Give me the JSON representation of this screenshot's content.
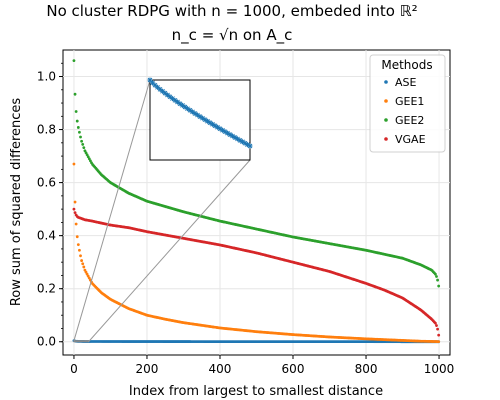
{
  "chart_data": {
    "type": "scatter",
    "title_line1": "No cluster RDPG with n = 1000, embeded into ℝ²",
    "title_line2": "n_c = √n on A_c",
    "xlabel": "Index from largest to smallest distance",
    "ylabel": "Row sum of squared differences",
    "xlim": [
      -30,
      1030
    ],
    "ylim": [
      -0.05,
      1.1
    ],
    "xticks": [
      0,
      200,
      400,
      600,
      800,
      1000
    ],
    "yticks": [
      0.0,
      0.2,
      0.4,
      0.6,
      0.8,
      1.0
    ],
    "xtick_labels": [
      "0",
      "200",
      "400",
      "600",
      "800",
      "1000"
    ],
    "ytick_labels": [
      "0.0",
      "0.2",
      "0.4",
      "0.6",
      "0.8",
      "1.0"
    ],
    "grid": true,
    "legend_title": "Methods",
    "legend_position": "top-right",
    "series": [
      {
        "name": "ASE",
        "color": "#1f77b4",
        "x": [
          0,
          5,
          10,
          20,
          30,
          50,
          100,
          200,
          300,
          400,
          500,
          600,
          700,
          800,
          900,
          950,
          990,
          999
        ],
        "y": [
          0.004,
          0.002,
          0.0015,
          0.0012,
          0.001,
          0.0009,
          0.0008,
          0.0007,
          0.0006,
          0.0005,
          0.0004,
          0.0004,
          0.0003,
          0.0003,
          0.0002,
          0.0002,
          0.0001,
          0.0001
        ]
      },
      {
        "name": "GEE1",
        "color": "#ff7f0e",
        "x": [
          0,
          2,
          5,
          10,
          20,
          30,
          50,
          75,
          100,
          150,
          200,
          250,
          300,
          400,
          500,
          600,
          700,
          800,
          900,
          950,
          990,
          999
        ],
        "y": [
          0.67,
          0.56,
          0.46,
          0.38,
          0.31,
          0.27,
          0.22,
          0.185,
          0.16,
          0.125,
          0.1,
          0.085,
          0.072,
          0.052,
          0.038,
          0.027,
          0.018,
          0.011,
          0.005,
          0.002,
          0.0008,
          0.0003
        ]
      },
      {
        "name": "GEE2",
        "color": "#2ca02c",
        "x": [
          0,
          2,
          5,
          10,
          20,
          30,
          50,
          75,
          100,
          150,
          200,
          250,
          300,
          400,
          500,
          600,
          700,
          800,
          900,
          950,
          980,
          990,
          995,
          999
        ],
        "y": [
          1.06,
          0.96,
          0.88,
          0.82,
          0.76,
          0.72,
          0.67,
          0.63,
          0.6,
          0.56,
          0.53,
          0.51,
          0.49,
          0.455,
          0.425,
          0.395,
          0.37,
          0.345,
          0.315,
          0.29,
          0.27,
          0.255,
          0.24,
          0.21
        ]
      },
      {
        "name": "VGAE",
        "color": "#d62728",
        "x": [
          0,
          2,
          5,
          10,
          20,
          30,
          50,
          100,
          150,
          200,
          300,
          400,
          500,
          600,
          700,
          800,
          850,
          900,
          950,
          980,
          990,
          995,
          999
        ],
        "y": [
          0.5,
          0.49,
          0.48,
          0.47,
          0.465,
          0.46,
          0.455,
          0.44,
          0.43,
          0.415,
          0.39,
          0.365,
          0.335,
          0.3,
          0.265,
          0.22,
          0.195,
          0.165,
          0.12,
          0.085,
          0.07,
          0.055,
          0.025
        ]
      }
    ],
    "inset": {
      "series": "ASE",
      "x_range": [
        0,
        40
      ],
      "y_range": [
        0,
        0.004
      ]
    }
  }
}
